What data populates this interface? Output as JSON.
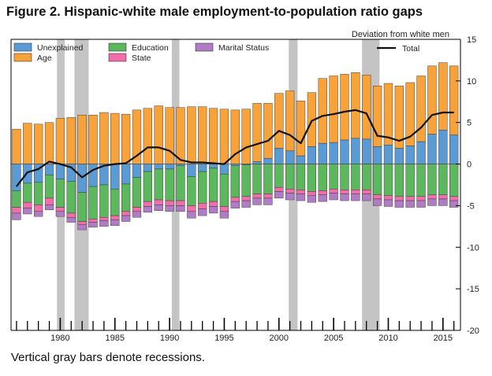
{
  "figure": {
    "title": "Figure 2. Hispanic-white male employment-to-population ratio gaps",
    "note": "Vertical gray bars denote recessions."
  },
  "colors": {
    "unexplained": "#5b9bd5",
    "age": "#f8a23a",
    "education": "#5cb85c",
    "state": "#f06eaa",
    "marital_status": "#b07cc6",
    "total": "#111111",
    "recession": "#c4c4c4"
  },
  "chart_data": {
    "type": "bar",
    "stacked": true,
    "title": "",
    "ylabel": "Deviation from white men",
    "ylim": [
      -20,
      15
    ],
    "xlim": [
      1975.5,
      2016.6
    ],
    "yticks": [
      "15",
      "10",
      "5",
      "0",
      "-5",
      "-10",
      "-15",
      "-20"
    ],
    "xticks": [
      "1980",
      "1985",
      "1990",
      "1995",
      "2000",
      "2005",
      "2010",
      "2015"
    ],
    "grid": false,
    "legend_position": "top",
    "recessions": [
      [
        1979.7,
        1980.4
      ],
      [
        1981.3,
        1982.6
      ],
      [
        1990.2,
        1990.9
      ],
      [
        2000.9,
        2001.7
      ],
      [
        2007.6,
        2009.2
      ]
    ],
    "years": [
      1976,
      1977,
      1978,
      1979,
      1980,
      1981,
      1982,
      1983,
      1984,
      1985,
      1986,
      1987,
      1988,
      1989,
      1990,
      1991,
      1992,
      1993,
      1994,
      1995,
      1996,
      1997,
      1998,
      1999,
      2000,
      2001,
      2002,
      2003,
      2004,
      2005,
      2006,
      2007,
      2008,
      2009,
      2010,
      2011,
      2012,
      2013,
      2014,
      2015,
      2016
    ],
    "series": [
      {
        "key": "unexplained",
        "name": "Unexplained",
        "values": [
          -3.2,
          -2.3,
          -2.2,
          -1.3,
          -1.8,
          -2.1,
          -3.4,
          -2.7,
          -2.5,
          -3.0,
          -2.4,
          -1.6,
          -0.9,
          -0.6,
          -0.6,
          -0.2,
          -1.5,
          -0.9,
          -0.5,
          -1.2,
          -0.2,
          -0.1,
          0.3,
          0.7,
          1.9,
          1.6,
          1.0,
          2.1,
          2.5,
          2.6,
          2.9,
          3.1,
          3.0,
          2.1,
          2.3,
          1.9,
          2.2,
          2.7,
          3.6,
          4.1,
          3.5
        ]
      },
      {
        "key": "age",
        "name": "Age",
        "values": [
          4.2,
          4.9,
          4.8,
          5.0,
          5.5,
          5.6,
          5.9,
          5.9,
          6.2,
          6.1,
          6.0,
          6.5,
          6.7,
          7.0,
          6.8,
          6.8,
          6.9,
          6.9,
          6.7,
          6.6,
          6.5,
          6.6,
          7.0,
          6.6,
          6.6,
          7.2,
          6.6,
          6.5,
          7.8,
          8.0,
          7.9,
          7.9,
          7.7,
          7.3,
          7.4,
          7.5,
          7.6,
          7.9,
          8.2,
          8.1,
          8.3
        ]
      },
      {
        "key": "education",
        "name": "Education",
        "values": [
          -2.0,
          -2.3,
          -2.7,
          -2.8,
          -3.4,
          -3.8,
          -3.5,
          -3.9,
          -3.9,
          -3.2,
          -3.3,
          -3.6,
          -3.6,
          -3.7,
          -3.8,
          -4.2,
          -3.5,
          -3.8,
          -4.0,
          -3.9,
          -3.8,
          -3.8,
          -3.6,
          -3.6,
          -2.8,
          -3.0,
          -3.1,
          -3.3,
          -3.2,
          -3.0,
          -3.1,
          -3.1,
          -3.1,
          -3.7,
          -3.8,
          -3.9,
          -3.9,
          -3.9,
          -3.7,
          -3.7,
          -3.9
        ]
      },
      {
        "key": "state",
        "name": "State",
        "values": [
          -0.7,
          -0.7,
          -0.8,
          -0.8,
          -0.5,
          -0.5,
          -0.4,
          -0.4,
          -0.4,
          -0.5,
          -0.5,
          -0.5,
          -0.6,
          -0.6,
          -0.6,
          -0.6,
          -0.7,
          -0.7,
          -0.6,
          -0.6,
          -0.5,
          -0.5,
          -0.5,
          -0.5,
          -0.5,
          -0.5,
          -0.5,
          -0.5,
          -0.5,
          -0.5,
          -0.5,
          -0.5,
          -0.5,
          -0.5,
          -0.5,
          -0.5,
          -0.5,
          -0.5,
          -0.5,
          -0.5,
          -0.5
        ]
      },
      {
        "key": "marital_status",
        "name": "Marital Status",
        "values": [
          -0.8,
          -0.7,
          -0.6,
          -0.6,
          -0.6,
          -0.6,
          -0.6,
          -0.6,
          -0.7,
          -0.7,
          -0.7,
          -0.7,
          -0.7,
          -0.7,
          -0.7,
          -0.7,
          -0.8,
          -0.8,
          -0.8,
          -0.8,
          -0.8,
          -0.8,
          -0.8,
          -0.8,
          -0.8,
          -0.8,
          -0.8,
          -0.8,
          -0.8,
          -0.8,
          -0.8,
          -0.8,
          -0.8,
          -0.8,
          -0.8,
          -0.8,
          -0.8,
          -0.8,
          -0.8,
          -0.8,
          -0.8
        ]
      }
    ],
    "total": {
      "key": "total",
      "name": "Total",
      "values": [
        -2.7,
        -1.0,
        -0.6,
        0.3,
        0.0,
        -0.4,
        -1.6,
        -0.7,
        -0.2,
        0.0,
        0.1,
        1.0,
        2.0,
        2.0,
        1.6,
        0.5,
        0.2,
        0.2,
        0.1,
        0.0,
        1.2,
        2.0,
        2.4,
        2.8,
        4.0,
        3.5,
        2.5,
        5.2,
        5.8,
        6.0,
        6.3,
        6.5,
        6.1,
        3.4,
        3.2,
        2.8,
        3.3,
        4.4,
        5.9,
        6.2,
        6.2
      ]
    }
  }
}
